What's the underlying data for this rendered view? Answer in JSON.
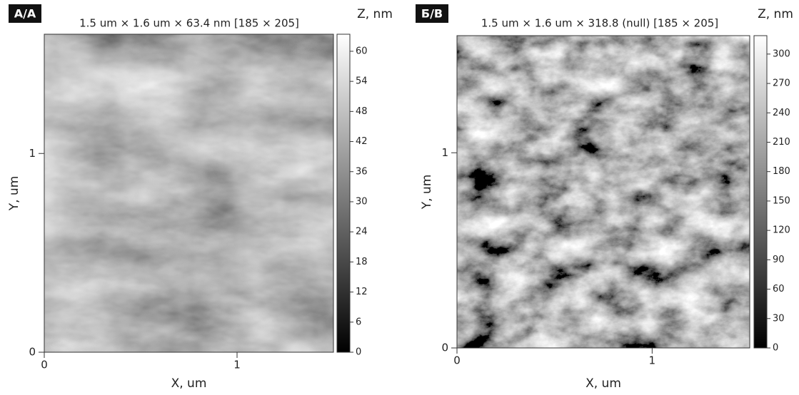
{
  "chart_data": [
    {
      "type": "heatmap",
      "label": "А/А",
      "title": "1.5 um × 1.6 um × 63.4 nm [185 × 205]",
      "xlabel": "X, um",
      "ylabel": "Y, um",
      "xlim": [
        0,
        1.5
      ],
      "ylim": [
        0,
        1.6
      ],
      "xticks": [
        0,
        1
      ],
      "yticks": [
        0,
        1
      ],
      "colorbar": {
        "label": "Z, nm",
        "lim": [
          0,
          63.4
        ],
        "ticks": [
          0,
          6,
          12,
          18,
          24,
          30,
          36,
          42,
          48,
          54,
          60
        ]
      }
    },
    {
      "type": "heatmap",
      "label": "Б/В",
      "title": "1.5 um × 1.6 um × 318.8 (null) [185 × 205]",
      "xlabel": "X, um",
      "ylabel": "Y, um",
      "xlim": [
        0,
        1.5
      ],
      "ylim": [
        0,
        1.6
      ],
      "xticks": [
        0,
        1
      ],
      "yticks": [
        0,
        1
      ],
      "colorbar": {
        "label": "Z, nm",
        "lim": [
          0,
          318.8
        ],
        "ticks": [
          0,
          30,
          60,
          90,
          120,
          150,
          180,
          210,
          240,
          270,
          300
        ]
      }
    }
  ]
}
